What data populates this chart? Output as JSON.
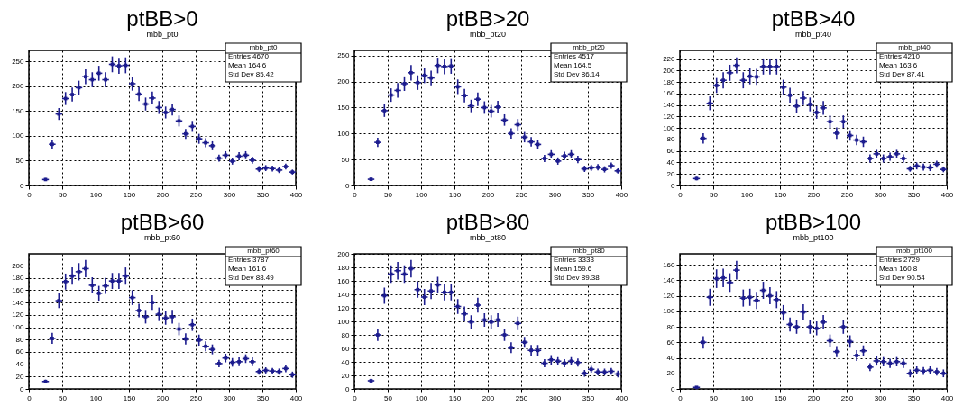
{
  "chart_data": [
    {
      "type": "scatter",
      "title": "ptBB>0",
      "subtitle": "mbb_pt0",
      "annotations": [
        "mbb_pt0",
        "Entries 4670",
        "Mean 164.6",
        "Std Dev 85.42"
      ],
      "xlim": [
        0,
        400
      ],
      "xticks": [
        0,
        50,
        100,
        150,
        200,
        250,
        300,
        350,
        400
      ],
      "marker": "square",
      "ylim": [
        0,
        272
      ],
      "yticks": [
        0,
        50,
        100,
        150,
        200,
        250
      ],
      "grid": true,
      "x": [
        25,
        35,
        45,
        55,
        65,
        75,
        85,
        95,
        105,
        115,
        125,
        135,
        145,
        155,
        165,
        175,
        185,
        195,
        205,
        215,
        225,
        235,
        245,
        255,
        265,
        275,
        285,
        295,
        305,
        315,
        325,
        335,
        345,
        355,
        365,
        375,
        385,
        395
      ],
      "series": [
        {
          "color": "#1c1c8e",
          "values": [
            12,
            83,
            144,
            175,
            183,
            197,
            219,
            213,
            226,
            213,
            244,
            241,
            242,
            205,
            184,
            164,
            176,
            157,
            147,
            153,
            130,
            104,
            119,
            94,
            86,
            80,
            55,
            61,
            49,
            59,
            61,
            51,
            33,
            35,
            34,
            31,
            38,
            27
          ],
          "errors": [
            3,
            9,
            12,
            13,
            14,
            14,
            15,
            15,
            15,
            15,
            16,
            16,
            16,
            14,
            14,
            13,
            13,
            13,
            12,
            12,
            11,
            10,
            11,
            10,
            9,
            9,
            7,
            8,
            7,
            8,
            8,
            7,
            6,
            6,
            6,
            6,
            6,
            5
          ],
          "xerrors": [
            5,
            5,
            5,
            5,
            5,
            5,
            5,
            5,
            5,
            5,
            5,
            5,
            5,
            5,
            5,
            5,
            5,
            5,
            5,
            5,
            5,
            5,
            5,
            5,
            5,
            5,
            5,
            5,
            5,
            5,
            5,
            5,
            5,
            5,
            5,
            5,
            5,
            5
          ]
        }
      ]
    },
    {
      "type": "scatter",
      "title": "ptBB>20",
      "subtitle": "mbb_pt20",
      "annotations": [
        "mbb_pt20",
        "Entries 4517",
        "Mean 164.5",
        "Std Dev 86.14"
      ],
      "xlim": [
        0,
        400
      ],
      "xticks": [
        0,
        50,
        100,
        150,
        200,
        250,
        300,
        350,
        400
      ],
      "marker": "square",
      "ylim": [
        0,
        260
      ],
      "yticks": [
        0,
        50,
        100,
        150,
        200,
        250
      ],
      "grid": true,
      "x": [
        25,
        35,
        45,
        55,
        65,
        75,
        85,
        95,
        105,
        115,
        125,
        135,
        145,
        155,
        165,
        175,
        185,
        195,
        205,
        215,
        225,
        235,
        245,
        255,
        265,
        275,
        285,
        295,
        305,
        315,
        325,
        335,
        345,
        355,
        365,
        375,
        385,
        395
      ],
      "series": [
        {
          "color": "#1c1c8e",
          "values": [
            12,
            83,
            144,
            174,
            183,
            196,
            217,
            198,
            212,
            207,
            231,
            229,
            230,
            190,
            173,
            153,
            166,
            150,
            143,
            151,
            126,
            100,
            117,
            93,
            84,
            79,
            52,
            60,
            47,
            57,
            60,
            50,
            32,
            34,
            35,
            31,
            38,
            28
          ],
          "errors": [
            3,
            9,
            12,
            13,
            14,
            14,
            15,
            14,
            15,
            14,
            15,
            15,
            15,
            14,
            13,
            12,
            13,
            12,
            12,
            12,
            11,
            10,
            11,
            10,
            9,
            9,
            7,
            8,
            7,
            8,
            8,
            7,
            6,
            6,
            6,
            6,
            6,
            5
          ],
          "xerrors": [
            5,
            5,
            5,
            5,
            5,
            5,
            5,
            5,
            5,
            5,
            5,
            5,
            5,
            5,
            5,
            5,
            5,
            5,
            5,
            5,
            5,
            5,
            5,
            5,
            5,
            5,
            5,
            5,
            5,
            5,
            5,
            5,
            5,
            5,
            5,
            5,
            5,
            5
          ]
        }
      ]
    },
    {
      "type": "scatter",
      "title": "ptBB>40",
      "subtitle": "mbb_pt40",
      "annotations": [
        "mbb_pt40",
        "Entries 4210",
        "Mean 163.6",
        "Std Dev 87.41"
      ],
      "xlim": [
        0,
        400
      ],
      "xticks": [
        0,
        50,
        100,
        150,
        200,
        250,
        300,
        350,
        400
      ],
      "marker": "square",
      "ylim": [
        0,
        235
      ],
      "yticks": [
        0,
        20,
        40,
        60,
        80,
        100,
        120,
        140,
        160,
        180,
        200,
        220
      ],
      "grid": true,
      "x": [
        25,
        35,
        45,
        55,
        65,
        75,
        85,
        95,
        105,
        115,
        125,
        135,
        145,
        155,
        165,
        175,
        185,
        195,
        205,
        215,
        225,
        235,
        245,
        255,
        265,
        275,
        285,
        295,
        305,
        315,
        325,
        335,
        345,
        355,
        365,
        375,
        385,
        395
      ],
      "series": [
        {
          "color": "#1c1c8e",
          "values": [
            12,
            82,
            143,
            174,
            183,
            196,
            209,
            183,
            190,
            189,
            207,
            207,
            207,
            171,
            157,
            138,
            152,
            141,
            127,
            135,
            111,
            91,
            111,
            87,
            79,
            76,
            47,
            55,
            47,
            50,
            55,
            47,
            29,
            34,
            32,
            31,
            37,
            28
          ],
          "errors": [
            3,
            9,
            12,
            13,
            14,
            14,
            14,
            14,
            14,
            14,
            14,
            14,
            14,
            13,
            13,
            12,
            12,
            12,
            11,
            12,
            11,
            10,
            11,
            9,
            9,
            9,
            7,
            7,
            7,
            7,
            7,
            7,
            5,
            6,
            6,
            6,
            6,
            5
          ],
          "xerrors": [
            5,
            5,
            5,
            5,
            5,
            5,
            5,
            5,
            5,
            5,
            5,
            5,
            5,
            5,
            5,
            5,
            5,
            5,
            5,
            5,
            5,
            5,
            5,
            5,
            5,
            5,
            5,
            5,
            5,
            5,
            5,
            5,
            5,
            5,
            5,
            5,
            5,
            5
          ]
        }
      ]
    },
    {
      "type": "scatter",
      "title": "ptBB>60",
      "subtitle": "mbb_pt60",
      "annotations": [
        "mbb_pt60",
        "Entries 3787",
        "Mean 161.6",
        "Std Dev 88.49"
      ],
      "xlim": [
        0,
        400
      ],
      "xticks": [
        0,
        50,
        100,
        150,
        200,
        250,
        300,
        350,
        400
      ],
      "marker": "square",
      "ylim": [
        0,
        219
      ],
      "yticks": [
        0,
        20,
        40,
        60,
        80,
        100,
        120,
        140,
        160,
        180,
        200
      ],
      "grid": true,
      "x": [
        25,
        35,
        45,
        55,
        65,
        75,
        85,
        95,
        105,
        115,
        125,
        135,
        145,
        155,
        165,
        175,
        185,
        195,
        205,
        215,
        225,
        235,
        245,
        255,
        265,
        275,
        285,
        295,
        305,
        315,
        325,
        335,
        345,
        355,
        365,
        375,
        385,
        395
      ],
      "series": [
        {
          "color": "#1c1c8e",
          "values": [
            12,
            82,
            143,
            174,
            183,
            190,
            195,
            168,
            155,
            167,
            175,
            175,
            183,
            148,
            127,
            117,
            140,
            121,
            115,
            117,
            97,
            81,
            104,
            79,
            69,
            64,
            41,
            50,
            43,
            44,
            49,
            44,
            28,
            30,
            29,
            28,
            33,
            23
          ],
          "errors": [
            3,
            9,
            12,
            13,
            14,
            14,
            14,
            13,
            12,
            13,
            13,
            13,
            14,
            12,
            11,
            11,
            12,
            11,
            11,
            11,
            10,
            9,
            10,
            9,
            8,
            8,
            6,
            7,
            7,
            7,
            7,
            7,
            5,
            5,
            5,
            5,
            6,
            5
          ],
          "xerrors": [
            5,
            5,
            5,
            5,
            5,
            5,
            5,
            5,
            5,
            5,
            5,
            5,
            5,
            5,
            5,
            5,
            5,
            5,
            5,
            5,
            5,
            5,
            5,
            5,
            5,
            5,
            5,
            5,
            5,
            5,
            5,
            5,
            5,
            5,
            5,
            5,
            5,
            5
          ]
        }
      ]
    },
    {
      "type": "scatter",
      "title": "ptBB>80",
      "subtitle": "mbb_pt80",
      "annotations": [
        "mbb_pt80",
        "Entries 3333",
        "Mean 159.6",
        "Std Dev 89.38"
      ],
      "xlim": [
        0,
        400
      ],
      "xticks": [
        0,
        50,
        100,
        150,
        200,
        250,
        300,
        350,
        400
      ],
      "marker": "square",
      "ylim": [
        0,
        200
      ],
      "yticks": [
        0,
        20,
        40,
        60,
        80,
        100,
        120,
        140,
        160,
        180,
        200
      ],
      "grid": true,
      "x": [
        25,
        35,
        45,
        55,
        65,
        75,
        85,
        95,
        105,
        115,
        125,
        135,
        145,
        155,
        165,
        175,
        185,
        195,
        205,
        215,
        225,
        235,
        245,
        255,
        265,
        275,
        285,
        295,
        305,
        315,
        325,
        335,
        345,
        355,
        365,
        375,
        385,
        395
      ],
      "series": [
        {
          "color": "#1c1c8e",
          "values": [
            12,
            80,
            138,
            170,
            175,
            170,
            178,
            147,
            136,
            145,
            154,
            143,
            143,
            122,
            111,
            99,
            124,
            102,
            99,
            102,
            80,
            61,
            97,
            69,
            57,
            57,
            38,
            43,
            41,
            38,
            41,
            39,
            23,
            29,
            25,
            25,
            26,
            22
          ],
          "errors": [
            3,
            9,
            12,
            13,
            13,
            13,
            13,
            12,
            12,
            12,
            12,
            12,
            12,
            11,
            11,
            10,
            11,
            10,
            10,
            10,
            9,
            8,
            10,
            8,
            8,
            8,
            6,
            7,
            6,
            6,
            6,
            6,
            5,
            5,
            5,
            5,
            5,
            5
          ],
          "xerrors": [
            5,
            5,
            5,
            5,
            5,
            5,
            5,
            5,
            5,
            5,
            5,
            5,
            5,
            5,
            5,
            5,
            5,
            5,
            5,
            5,
            5,
            5,
            5,
            5,
            5,
            5,
            5,
            5,
            5,
            5,
            5,
            5,
            5,
            5,
            5,
            5,
            5,
            5
          ]
        }
      ]
    },
    {
      "type": "scatter",
      "title": "ptBB>100",
      "subtitle": "mbb_pt100",
      "annotations": [
        "mbb_pt100",
        "Entries 2729",
        "Mean 160.8",
        "Std Dev 90.54"
      ],
      "xlim": [
        0,
        400
      ],
      "xticks": [
        0,
        50,
        100,
        150,
        200,
        250,
        300,
        350,
        400
      ],
      "marker": "square",
      "ylim": [
        0,
        174
      ],
      "yticks": [
        0,
        20,
        40,
        60,
        80,
        100,
        120,
        140,
        160
      ],
      "grid": true,
      "x": [
        25,
        35,
        45,
        55,
        65,
        75,
        85,
        95,
        105,
        115,
        125,
        135,
        145,
        155,
        165,
        175,
        185,
        195,
        205,
        215,
        225,
        235,
        245,
        255,
        265,
        275,
        285,
        295,
        305,
        315,
        325,
        335,
        345,
        355,
        365,
        375,
        385,
        395
      ],
      "series": [
        {
          "color": "#1c1c8e",
          "values": [
            2,
            60,
            118,
            142,
            143,
            137,
            153,
            117,
            118,
            114,
            127,
            120,
            115,
            98,
            83,
            80,
            99,
            80,
            78,
            86,
            62,
            48,
            80,
            61,
            43,
            49,
            28,
            36,
            35,
            33,
            35,
            33,
            20,
            24,
            23,
            24,
            22,
            20
          ],
          "errors": [
            1,
            8,
            11,
            12,
            12,
            12,
            12,
            11,
            11,
            11,
            11,
            11,
            11,
            10,
            9,
            9,
            10,
            9,
            9,
            9,
            8,
            7,
            9,
            8,
            7,
            7,
            5,
            6,
            6,
            6,
            6,
            6,
            5,
            5,
            5,
            5,
            5,
            5
          ],
          "xerrors": [
            5,
            5,
            5,
            5,
            5,
            5,
            5,
            5,
            5,
            5,
            5,
            5,
            5,
            5,
            5,
            5,
            5,
            5,
            5,
            5,
            5,
            5,
            5,
            5,
            5,
            5,
            5,
            5,
            5,
            5,
            5,
            5,
            5,
            5,
            5,
            5,
            5,
            5
          ]
        }
      ]
    }
  ]
}
